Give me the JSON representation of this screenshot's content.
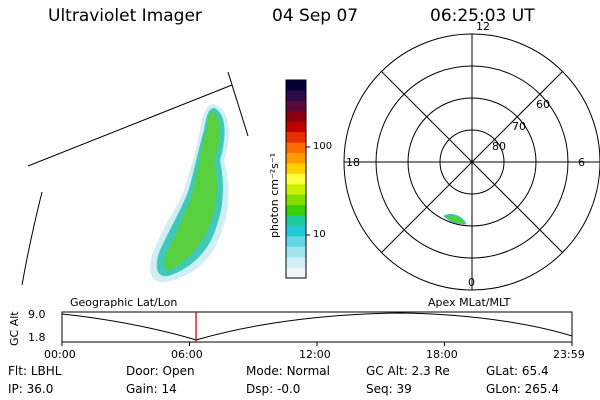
{
  "header": {
    "instrument": "Ultraviolet Imager",
    "date": "04 Sep 07",
    "time": "06:25:03 UT"
  },
  "colorbar": {
    "label": "photon cm⁻²s⁻¹",
    "ticks": [
      "100",
      "10"
    ],
    "colors": [
      "#000033",
      "#2a0a4a",
      "#5a0a3a",
      "#8a0010",
      "#c00000",
      "#e83000",
      "#ff6a00",
      "#ff9a00",
      "#ffd000",
      "#ffff40",
      "#c8f000",
      "#7fe000",
      "#38d000",
      "#20c8a0",
      "#20c8d8",
      "#60d8e8",
      "#a0e4ef",
      "#d0eef5",
      "#eef4f7"
    ]
  },
  "polar": {
    "mlt_labels": [
      "12",
      "18",
      "6",
      "0"
    ],
    "lat_labels": [
      "60",
      "70",
      "80"
    ]
  },
  "lower_panel": {
    "left_title": "Geographic Lat/Lon",
    "right_title": "Apex MLat/MLT",
    "y_title": "GC Alt",
    "y_ticks": [
      "9.0",
      "1.8"
    ],
    "x_ticks": [
      "00:00",
      "06:00",
      "12:00",
      "18:00",
      "23:59"
    ],
    "current_time_marker": "06:25"
  },
  "status": {
    "row1": [
      {
        "label": "Flt:",
        "value": "LBHL"
      },
      {
        "label": "Door:",
        "value": "Open"
      },
      {
        "label": "Mode:",
        "value": "Normal"
      },
      {
        "label": "GC Alt:",
        "value": "2.3 Re"
      },
      {
        "label": "GLat:",
        "value": "65.4"
      }
    ],
    "row2": [
      {
        "label": "IP:",
        "value": "36.0"
      },
      {
        "label": "Gain:",
        "value": "14"
      },
      {
        "label": "Dsp:",
        "value": "-0.0"
      },
      {
        "label": "Seq:",
        "value": "39"
      },
      {
        "label": "GLon:",
        "value": "265.4"
      }
    ]
  },
  "colors": {
    "marker": "#e00000"
  }
}
